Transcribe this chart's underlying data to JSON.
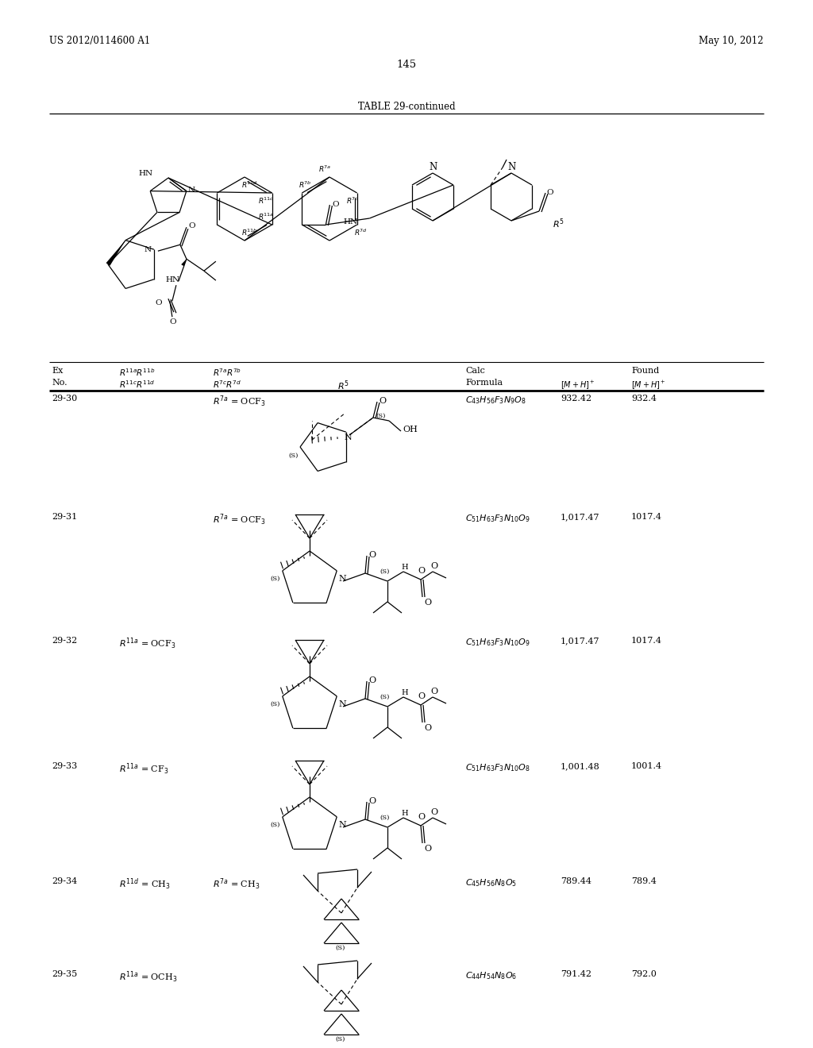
{
  "background_color": "#ffffff",
  "header_left": "US 2012/0114600 A1",
  "header_right": "May 10, 2012",
  "page_number": "145",
  "table_title": "TABLE 29-continued",
  "rows": [
    {
      "ex_no": "29-30",
      "r7a": "R^{7a} = OCF_3",
      "formula": "C_{43}H_{56}F_3N_9O_8",
      "calc": "932.42",
      "found": "932.4"
    },
    {
      "ex_no": "29-31",
      "r7a": "R^{7a} = OCF_3",
      "formula": "C_{51}H_{63}F_3N_{10}O_9",
      "calc": "1,017.47",
      "found": "1017.4"
    },
    {
      "ex_no": "29-32",
      "r11a": "R^{11a} = OCF_3",
      "formula": "C_{51}H_{63}F_3N_{10}O_9",
      "calc": "1,017.47",
      "found": "1017.4"
    },
    {
      "ex_no": "29-33",
      "r11a": "R^{11a} = CF_3",
      "formula": "C_{51}H_{63}F_3N_{10}O_8",
      "calc": "1,001.48",
      "found": "1001.4"
    },
    {
      "ex_no": "29-34",
      "r11d": "R^{11d} = CH_3",
      "r7a": "R^{7a} = CH_3",
      "formula": "C_{45}H_{56}N_8O_5",
      "calc": "789.44",
      "found": "789.4"
    },
    {
      "ex_no": "29-35",
      "r11a": "R^{11a} = OCH_3",
      "formula": "C_{44}H_{54}N_8O_6",
      "calc": "791.42",
      "found": "792.0"
    }
  ]
}
